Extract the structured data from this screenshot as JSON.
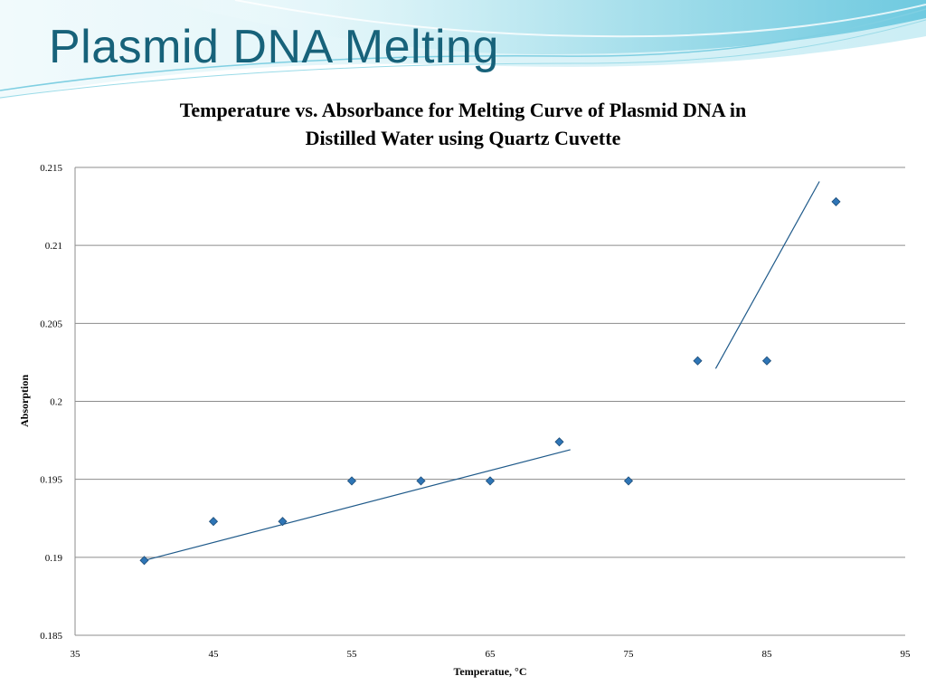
{
  "slide": {
    "title": "Plasmid DNA Melting",
    "accent_color": "#17627a"
  },
  "chart_data": {
    "type": "scatter",
    "title_lines": [
      "Temperature vs. Absorbance for Melting Curve of Plasmid DNA in",
      "Distilled Water using Quartz Cuvette"
    ],
    "xlabel": "Temperatue, °C",
    "ylabel": "Absorption",
    "xlim": [
      35,
      95
    ],
    "ylim": [
      0.185,
      0.215
    ],
    "x_ticks": [
      "35",
      "45",
      "55",
      "65",
      "75",
      "85",
      "95"
    ],
    "y_ticks": [
      "0.185",
      "0.19",
      "0.195",
      "0.2",
      "0.205",
      "0.21",
      "0.215"
    ],
    "grid": "horizontal",
    "legend": "none",
    "marker": "diamond",
    "marker_color": "#2e75b6",
    "points": [
      {
        "x": 40,
        "y": 0.1898
      },
      {
        "x": 45,
        "y": 0.1923
      },
      {
        "x": 50,
        "y": 0.1923
      },
      {
        "x": 55,
        "y": 0.1949
      },
      {
        "x": 60,
        "y": 0.1949
      },
      {
        "x": 65,
        "y": 0.1949
      },
      {
        "x": 70,
        "y": 0.1974
      },
      {
        "x": 75,
        "y": 0.1949
      },
      {
        "x": 80,
        "y": 0.2026
      },
      {
        "x": 85,
        "y": 0.2026
      },
      {
        "x": 90,
        "y": 0.2128
      }
    ],
    "trendlines": [
      {
        "x": [
          40,
          70.8
        ],
        "y": [
          0.1898,
          0.1969
        ],
        "color": "#1f5a8a"
      },
      {
        "x": [
          81.3,
          88.8
        ],
        "y": [
          0.2021,
          0.2141
        ],
        "color": "#1f5a8a"
      }
    ]
  }
}
